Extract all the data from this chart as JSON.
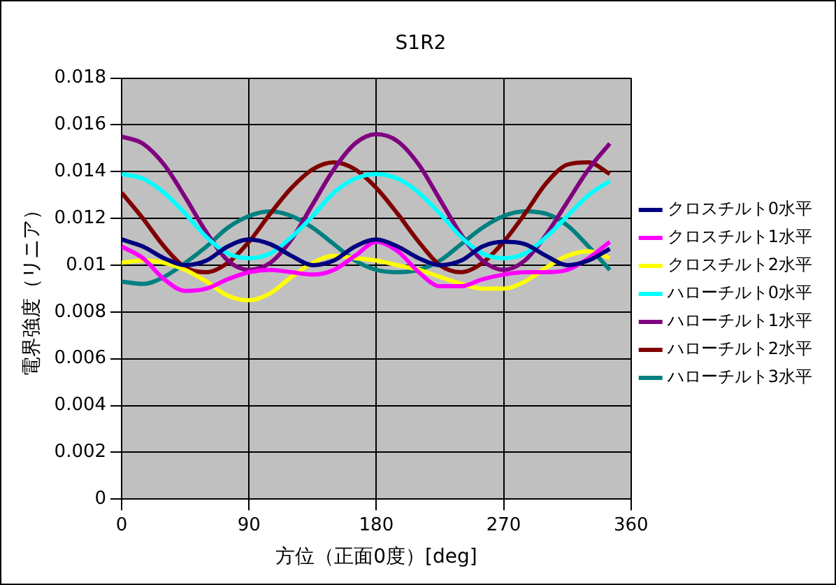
{
  "chart_data": {
    "type": "line",
    "title": "S1R2",
    "xlabel": "方位（正面0度）[deg]",
    "ylabel": "電界強度（リニア）",
    "x": [
      0,
      15,
      30,
      45,
      60,
      75,
      90,
      105,
      120,
      135,
      150,
      165,
      180,
      195,
      210,
      225,
      240,
      255,
      270,
      285,
      300,
      315,
      330,
      345
    ],
    "xlim": [
      0,
      360
    ],
    "xticks": [
      0,
      90,
      180,
      270,
      360
    ],
    "ylim": [
      0,
      0.018
    ],
    "yticks": [
      0,
      0.002,
      0.004,
      0.006,
      0.008,
      0.01,
      0.012,
      0.014,
      0.016,
      0.018
    ],
    "grid": true,
    "legend": "right",
    "marker": "none",
    "line_style": "solid",
    "series": [
      {
        "name": "クロスチルト0水平",
        "color": "#000080",
        "values": [
          0.0111,
          0.0108,
          0.0103,
          0.01,
          0.0102,
          0.0108,
          0.0111,
          0.0109,
          0.0104,
          0.01,
          0.0102,
          0.0108,
          0.0111,
          0.0108,
          0.0103,
          0.01,
          0.0102,
          0.0108,
          0.011,
          0.0109,
          0.0104,
          0.01,
          0.0102,
          0.0107
        ]
      },
      {
        "name": "クロスチルト1水平",
        "color": "#ff00ff",
        "values": [
          0.0108,
          0.0103,
          0.0094,
          0.0089,
          0.009,
          0.0094,
          0.0097,
          0.0098,
          0.0097,
          0.0096,
          0.0098,
          0.0104,
          0.011,
          0.0106,
          0.0097,
          0.0091,
          0.0091,
          0.0094,
          0.0096,
          0.0097,
          0.0097,
          0.0098,
          0.0103,
          0.011
        ]
      },
      {
        "name": "クロスチルト2水平",
        "color": "#ffff00",
        "values": [
          0.0101,
          0.0102,
          0.0101,
          0.0098,
          0.0093,
          0.0087,
          0.0085,
          0.0088,
          0.0095,
          0.0101,
          0.0104,
          0.0103,
          0.0102,
          0.01,
          0.0098,
          0.0095,
          0.0092,
          0.009,
          0.009,
          0.0093,
          0.0099,
          0.0104,
          0.0106,
          0.0103
        ]
      },
      {
        "name": "ハローチルト0水平",
        "color": "#00ffff",
        "values": [
          0.0139,
          0.0137,
          0.0131,
          0.0122,
          0.0112,
          0.0105,
          0.0103,
          0.0105,
          0.0112,
          0.0121,
          0.0131,
          0.0137,
          0.0139,
          0.0137,
          0.0131,
          0.0122,
          0.0112,
          0.0105,
          0.0103,
          0.0105,
          0.0112,
          0.0121,
          0.013,
          0.0136
        ]
      },
      {
        "name": "ハローチルト1水平",
        "color": "#800080",
        "values": [
          0.0155,
          0.0152,
          0.0143,
          0.0129,
          0.0114,
          0.0102,
          0.0098,
          0.0101,
          0.0111,
          0.0126,
          0.0141,
          0.0152,
          0.0156,
          0.0153,
          0.0143,
          0.0128,
          0.0113,
          0.0102,
          0.0098,
          0.0102,
          0.0113,
          0.0127,
          0.0141,
          0.0152
        ]
      },
      {
        "name": "ハローチルト2水平",
        "color": "#800000",
        "values": [
          0.0131,
          0.012,
          0.0108,
          0.0099,
          0.0097,
          0.0101,
          0.011,
          0.0122,
          0.0133,
          0.0141,
          0.0144,
          0.0141,
          0.0133,
          0.0122,
          0.011,
          0.01,
          0.0097,
          0.0101,
          0.011,
          0.0122,
          0.0135,
          0.0143,
          0.0144,
          0.0139
        ]
      },
      {
        "name": "ハローチルト3水平",
        "color": "#008080",
        "values": [
          0.0093,
          0.0092,
          0.0095,
          0.0101,
          0.0108,
          0.0116,
          0.0121,
          0.0123,
          0.0121,
          0.0116,
          0.0109,
          0.0102,
          0.0098,
          0.0097,
          0.0098,
          0.0102,
          0.0109,
          0.0116,
          0.0121,
          0.0123,
          0.0122,
          0.0117,
          0.0108,
          0.0098
        ]
      }
    ]
  }
}
